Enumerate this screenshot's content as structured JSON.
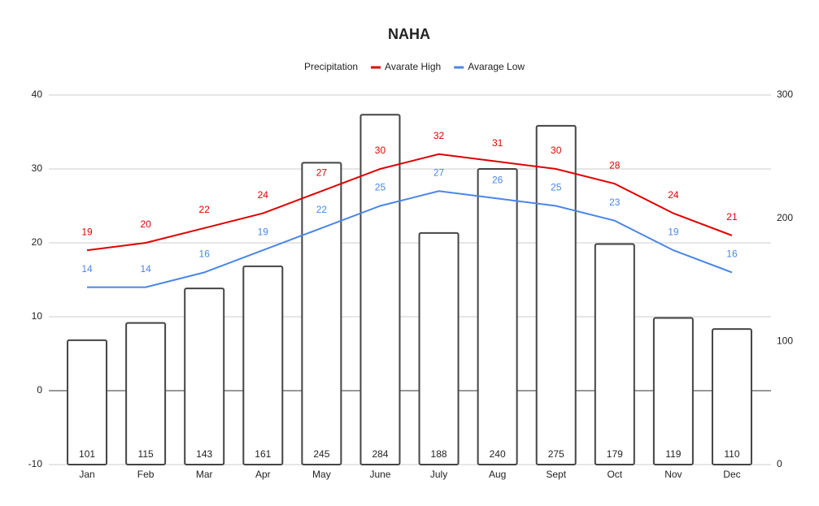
{
  "chart_data": {
    "type": "combo",
    "title": "NAHA",
    "categories": [
      "Jan",
      "Feb",
      "Mar",
      "Apr",
      "May",
      "June",
      "July",
      "Aug",
      "Sept",
      "Oct",
      "Nov",
      "Dec"
    ],
    "series": [
      {
        "name": "Precipitation",
        "type": "bar",
        "axis": "y2",
        "color": "#ffffff",
        "values": [
          101,
          115,
          143,
          161,
          245,
          284,
          188,
          240,
          275,
          179,
          119,
          110
        ]
      },
      {
        "name": "Avarate High",
        "type": "line",
        "color": "#e00000",
        "values": [
          19,
          20,
          22,
          24,
          27,
          30,
          32,
          31,
          30,
          28,
          24,
          21
        ]
      },
      {
        "name": "Avarage Low",
        "type": "line",
        "color": "#4a86e8",
        "values": [
          14,
          14,
          16,
          19,
          22,
          25,
          27,
          26,
          25,
          23,
          19,
          16
        ]
      }
    ],
    "ylim": [
      -10,
      40
    ],
    "yticks": [
      -10,
      0,
      10,
      20,
      30,
      40
    ],
    "y2lim": [
      0,
      300
    ],
    "y2ticks": [
      0,
      100,
      200,
      300
    ],
    "grid": true,
    "legend": "top"
  }
}
